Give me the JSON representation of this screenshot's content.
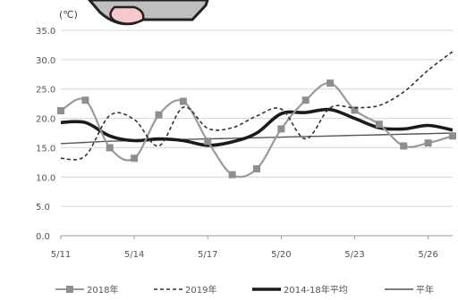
{
  "chart_data": {
    "type": "line",
    "unit_label": "(℃)",
    "ylim": [
      0,
      35
    ],
    "y_ticks": [
      "0.0",
      "5.0",
      "10.0",
      "15.0",
      "20.0",
      "25.0",
      "30.0",
      "35.0"
    ],
    "x_tick_labels": [
      "5/11",
      "5/14",
      "5/17",
      "5/20",
      "5/23",
      "5/26"
    ],
    "x_tick_index": [
      0,
      3,
      6,
      9,
      12,
      15
    ],
    "grid": "horizontal",
    "legend_position": "bottom",
    "series": [
      {
        "name": "2018年",
        "style": "gray-square-markers",
        "color": "#9a9a9a",
        "values": [
          21.3,
          23.1,
          15.0,
          13.2,
          20.6,
          22.9,
          16.1,
          10.4,
          11.4,
          18.2,
          23.1,
          26.0,
          21.4,
          19.0,
          15.3,
          15.8,
          17.0
        ]
      },
      {
        "name": "2019年",
        "style": "dashed",
        "color": "#333333",
        "values": [
          13.2,
          13.6,
          20.5,
          19.8,
          15.3,
          21.9,
          18.3,
          18.4,
          20.4,
          21.6,
          16.5,
          21.8,
          21.8,
          22.2,
          24.5,
          28.2,
          31.4
        ]
      },
      {
        "name": "2014-18年平均",
        "style": "thick",
        "color": "#1a1a1a",
        "values": [
          19.3,
          19.3,
          17.0,
          16.2,
          16.5,
          16.2,
          15.4,
          16.0,
          17.5,
          20.8,
          21.0,
          21.5,
          20.0,
          18.4,
          18.2,
          18.8,
          18.0
        ]
      },
      {
        "name": "平年",
        "style": "thin",
        "color": "#555555",
        "values": [
          15.7,
          15.9,
          16.1,
          16.2,
          16.3,
          16.4,
          16.5,
          16.6,
          16.7,
          16.8,
          16.9,
          17.0,
          17.1,
          17.2,
          17.3,
          17.4,
          17.5
        ]
      }
    ]
  }
}
